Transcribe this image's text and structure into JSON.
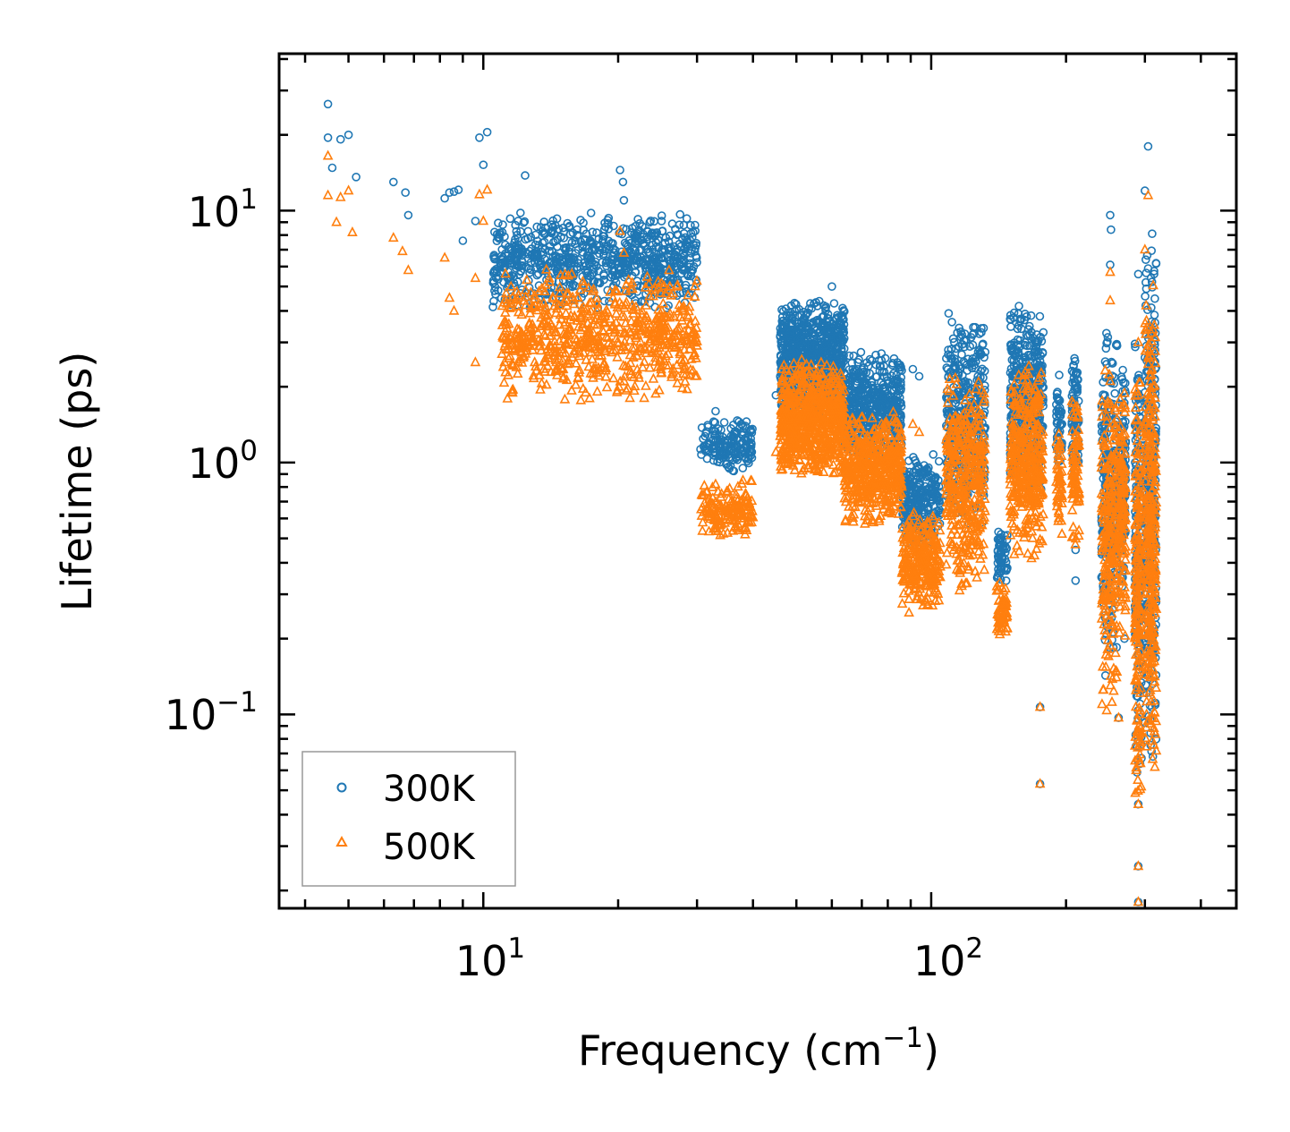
{
  "chart_data": {
    "type": "scatter",
    "title": "",
    "xlabel": "Frequency (cm",
    "xlabel_sup": "−1",
    "xlabel_suffix": ")",
    "ylabel": "Lifetime (ps)",
    "xscale": "log",
    "yscale": "log",
    "xlim": [
      3.5,
      480
    ],
    "ylim": [
      0.017,
      42
    ],
    "x_ticks": [
      {
        "base": "10",
        "exp": "1",
        "value": 10
      },
      {
        "base": "10",
        "exp": "2",
        "value": 100
      }
    ],
    "y_ticks": [
      {
        "base": "10",
        "exp": "−1",
        "value": 0.1
      },
      {
        "base": "10",
        "exp": "0",
        "value": 1
      },
      {
        "base": "10",
        "exp": "1",
        "value": 10
      }
    ],
    "legend_position": "bottom-left",
    "series": [
      {
        "name": "300K",
        "marker": "circle",
        "color": "#1f77b4",
        "points": [
          [
            4.5,
            26.5
          ],
          [
            4.5,
            19.5
          ],
          [
            4.6,
            14.8
          ],
          [
            4.8,
            19.2
          ],
          [
            5.0,
            20.0
          ],
          [
            5.2,
            13.6
          ],
          [
            6.3,
            13.0
          ],
          [
            6.7,
            11.8
          ],
          [
            6.8,
            9.6
          ],
          [
            8.2,
            11.2
          ],
          [
            8.4,
            11.8
          ],
          [
            8.6,
            11.9
          ],
          [
            8.8,
            12.1
          ],
          [
            9.0,
            7.6
          ],
          [
            9.8,
            19.5
          ],
          [
            10.2,
            20.5
          ],
          [
            10.0,
            15.2
          ],
          [
            9.6,
            9.1
          ],
          [
            12.4,
            13.8
          ],
          [
            14.6,
            9.3
          ],
          [
            20.2,
            14.5
          ],
          [
            20.5,
            13.0
          ],
          [
            20.6,
            11.0
          ],
          [
            33.0,
            1.6
          ],
          [
            38.0,
            1.4
          ],
          [
            45.0,
            1.85
          ],
          [
            60.0,
            5.0
          ],
          [
            91.0,
            2.35
          ],
          [
            94.0,
            2.2
          ],
          [
            175.0,
            0.107
          ],
          [
            175.0,
            0.053
          ],
          [
            251.0,
            9.6
          ],
          [
            252.0,
            8.4
          ],
          [
            251.0,
            6.1
          ],
          [
            290.0,
            5.6
          ],
          [
            305.0,
            18.0
          ],
          [
            300.0,
            12.0
          ],
          [
            290.0,
            0.044
          ],
          [
            290.0,
            0.025
          ],
          [
            290.0,
            0.018
          ],
          [
            210.0,
            0.45
          ],
          [
            210.0,
            0.34
          ],
          [
            262.0,
            0.097
          ],
          [
            270.0,
            0.2
          ]
        ],
        "clusters": [
          {
            "x": [
              10.5,
              30
            ],
            "y": [
              4.0,
              10.0
            ],
            "n": 800
          },
          {
            "x": [
              30.5,
              40
            ],
            "y": [
              0.9,
              1.5
            ],
            "n": 160
          },
          {
            "x": [
              46,
              64
            ],
            "y": [
              1.5,
              4.6
            ],
            "n": 750
          },
          {
            "x": [
              64,
              86
            ],
            "y": [
              1.0,
              2.8
            ],
            "n": 500
          },
          {
            "x": [
              86,
              105
            ],
            "y": [
              0.45,
              1.1
            ],
            "n": 260
          },
          {
            "x": [
              108,
              132
            ],
            "y": [
              0.55,
              4.0
            ],
            "n": 380
          },
          {
            "x": [
              140,
              148
            ],
            "y": [
              0.32,
              0.55
            ],
            "n": 60
          },
          {
            "x": [
              150,
              178
            ],
            "y": [
              0.7,
              4.5
            ],
            "n": 380
          },
          {
            "x": [
              190,
              196
            ],
            "y": [
              0.9,
              2.5
            ],
            "n": 50
          },
          {
            "x": [
              206,
              214
            ],
            "y": [
              0.8,
              3.0
            ],
            "n": 80
          },
          {
            "x": [
              240,
              260
            ],
            "y": [
              0.12,
              4.0
            ],
            "n": 240
          },
          {
            "x": [
              263,
              272
            ],
            "y": [
              0.3,
              3.0
            ],
            "n": 120
          },
          {
            "x": [
              285,
              295
            ],
            "y": [
              0.05,
              4.0
            ],
            "n": 200
          },
          {
            "x": [
              300,
              318
            ],
            "y": [
              0.06,
              9.0
            ],
            "n": 320
          }
        ]
      },
      {
        "name": "500K",
        "marker": "triangle",
        "color": "#ff7f0e",
        "points": [
          [
            4.5,
            16.5
          ],
          [
            4.5,
            11.5
          ],
          [
            4.7,
            9.0
          ],
          [
            4.8,
            11.3
          ],
          [
            5.0,
            12.0
          ],
          [
            5.1,
            8.2
          ],
          [
            6.3,
            7.8
          ],
          [
            6.6,
            6.9
          ],
          [
            6.8,
            5.8
          ],
          [
            8.2,
            6.5
          ],
          [
            8.4,
            4.5
          ],
          [
            8.6,
            4.0
          ],
          [
            9.6,
            5.4
          ],
          [
            9.8,
            11.6
          ],
          [
            10.2,
            12.1
          ],
          [
            9.6,
            2.5
          ],
          [
            10.0,
            9.1
          ],
          [
            20.2,
            8.3
          ],
          [
            20.6,
            6.8
          ],
          [
            33.0,
            0.82
          ],
          [
            38.0,
            0.85
          ],
          [
            45.0,
            1.1
          ],
          [
            91.0,
            1.42
          ],
          [
            94.0,
            1.32
          ],
          [
            175.0,
            0.107
          ],
          [
            175.0,
            0.053
          ],
          [
            251.0,
            5.7
          ],
          [
            251.0,
            4.4
          ],
          [
            290.0,
            3.0
          ],
          [
            305.0,
            11.5
          ],
          [
            300.0,
            7.0
          ],
          [
            290.0,
            0.044
          ],
          [
            290.0,
            0.025
          ],
          [
            290.0,
            0.018
          ],
          [
            262.0,
            0.097
          ]
        ],
        "clusters": [
          {
            "x": [
              11,
              30
            ],
            "y": [
              1.7,
              6.0
            ],
            "n": 700
          },
          {
            "x": [
              30.5,
              40
            ],
            "y": [
              0.5,
              0.85
            ],
            "n": 160
          },
          {
            "x": [
              46,
              64
            ],
            "y": [
              0.85,
              2.6
            ],
            "n": 700
          },
          {
            "x": [
              64,
              86
            ],
            "y": [
              0.55,
              1.6
            ],
            "n": 500
          },
          {
            "x": [
              86,
              105
            ],
            "y": [
              0.25,
              0.65
            ],
            "n": 260
          },
          {
            "x": [
              108,
              132
            ],
            "y": [
              0.3,
              2.4
            ],
            "n": 380
          },
          {
            "x": [
              140,
              148
            ],
            "y": [
              0.2,
              0.35
            ],
            "n": 60
          },
          {
            "x": [
              150,
              178
            ],
            "y": [
              0.4,
              2.6
            ],
            "n": 380
          },
          {
            "x": [
              190,
              196
            ],
            "y": [
              0.5,
              1.6
            ],
            "n": 50
          },
          {
            "x": [
              206,
              214
            ],
            "y": [
              0.45,
              2.0
            ],
            "n": 80
          },
          {
            "x": [
              240,
              260
            ],
            "y": [
              0.1,
              2.6
            ],
            "n": 240
          },
          {
            "x": [
              263,
              272
            ],
            "y": [
              0.2,
              2.0
            ],
            "n": 120
          },
          {
            "x": [
              285,
              295
            ],
            "y": [
              0.035,
              2.5
            ],
            "n": 200
          },
          {
            "x": [
              300,
              318
            ],
            "y": [
              0.05,
              6.0
            ],
            "n": 320
          }
        ]
      }
    ]
  }
}
